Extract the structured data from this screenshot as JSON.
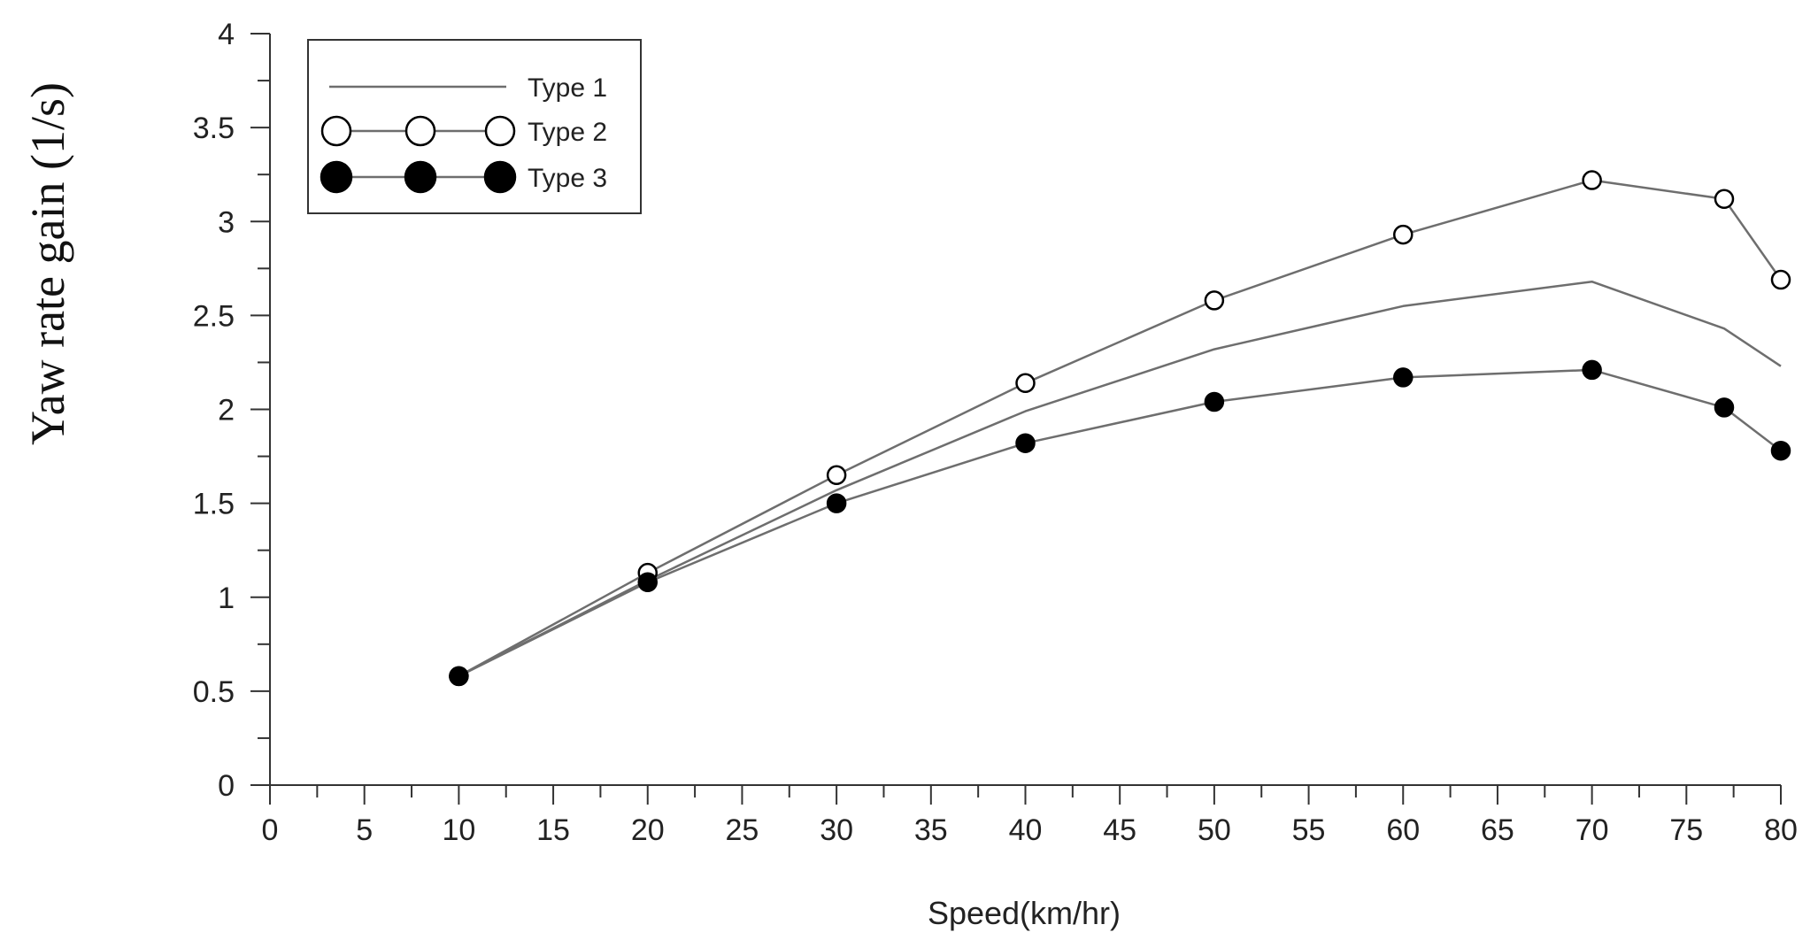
{
  "chart_data": {
    "type": "line",
    "title": "",
    "xlabel": "Speed(km/hr)",
    "ylabel": "Yaw rate gain (1/s)",
    "xlim": [
      0,
      80
    ],
    "ylim": [
      0,
      4
    ],
    "xticks": [
      "0",
      "5",
      "10",
      "15",
      "20",
      "25",
      "30",
      "35",
      "40",
      "45",
      "50",
      "55",
      "60",
      "65",
      "70",
      "75",
      "80"
    ],
    "yticks": [
      "0",
      "0.5",
      "1",
      "1.5",
      "2",
      "2.5",
      "3",
      "3.5",
      "4"
    ],
    "grid": false,
    "legend_position": "top-left",
    "series": [
      {
        "name": "Type 1",
        "marker": "none",
        "x": [
          10,
          20,
          30,
          40,
          50,
          60,
          70,
          77,
          80
        ],
        "y": [
          0.58,
          1.09,
          1.57,
          1.99,
          2.32,
          2.55,
          2.68,
          2.43,
          2.23
        ]
      },
      {
        "name": "Type 2",
        "marker": "open-circle",
        "x": [
          10,
          20,
          30,
          40,
          50,
          60,
          70,
          77,
          80
        ],
        "y": [
          0.58,
          1.13,
          1.65,
          2.14,
          2.58,
          2.93,
          3.22,
          3.12,
          2.69
        ]
      },
      {
        "name": "Type 3",
        "marker": "filled-circle",
        "x": [
          10,
          20,
          30,
          40,
          50,
          60,
          70,
          77,
          80
        ],
        "y": [
          0.58,
          1.08,
          1.5,
          1.82,
          2.04,
          2.17,
          2.21,
          2.01,
          1.78
        ]
      }
    ]
  },
  "colors": {
    "line": "#6e6e6e",
    "axis": "#333333",
    "marker_fill": "#000000",
    "background": "#ffffff"
  }
}
